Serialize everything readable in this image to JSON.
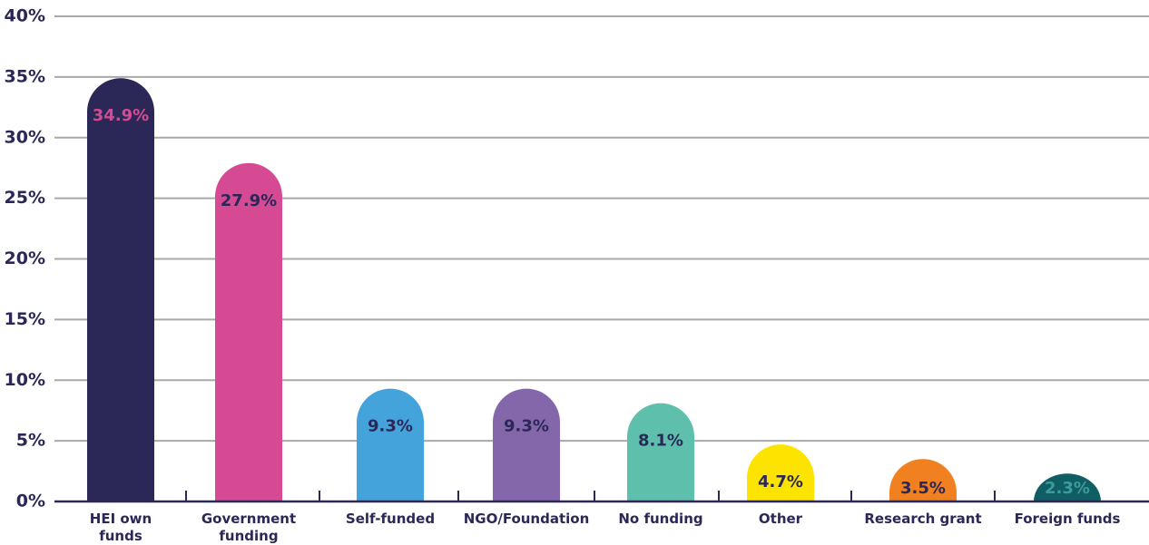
{
  "chart_data": {
    "type": "bar",
    "categories": [
      "HEI own funds",
      "Government funding",
      "Self-funded",
      "NGO/Foundation",
      "No funding",
      "Other",
      "Research grant",
      "Foreign funds"
    ],
    "values": [
      34.9,
      27.9,
      9.3,
      9.3,
      8.1,
      4.7,
      3.5,
      2.3
    ],
    "value_labels": [
      "34.9%",
      "27.9%",
      "9.3%",
      "9.3%",
      "8.1%",
      "4.7%",
      "3.5%",
      "2.3%"
    ],
    "colors": [
      "#2b2858",
      "#d64a93",
      "#45a3dc",
      "#8466aa",
      "#5fbfad",
      "#fde400",
      "#f08020",
      "#0e5e63"
    ],
    "value_label_colors": [
      "#d64a93",
      "#2b2858",
      "#2b2858",
      "#2b2858",
      "#2b2858",
      "#2b2858",
      "#2b2858",
      "#3e9a9c"
    ],
    "ylim": [
      0,
      40
    ],
    "yticks": [
      {
        "value": 0,
        "label": "0%"
      },
      {
        "value": 5,
        "label": "5%"
      },
      {
        "value": 10,
        "label": "10%"
      },
      {
        "value": 15,
        "label": "15%"
      },
      {
        "value": 20,
        "label": "20%"
      },
      {
        "value": 25,
        "label": "25%"
      },
      {
        "value": 30,
        "label": "30%"
      },
      {
        "value": 35,
        "label": "35%"
      },
      {
        "value": 40,
        "label": "40%"
      }
    ],
    "grid": true
  }
}
